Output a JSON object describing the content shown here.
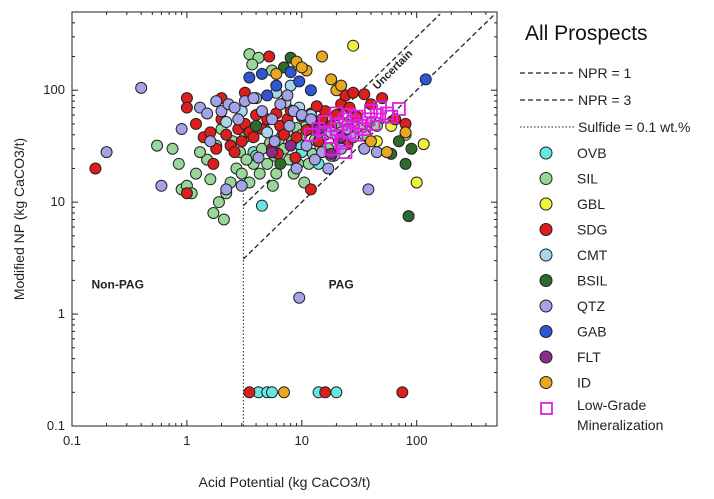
{
  "chart_data": {
    "type": "scatter",
    "title": "",
    "xlabel": "Acid Potential (kg CaCO3/t)",
    "ylabel": "Modified NP (kg CaCO3/t)",
    "xscale": "log",
    "yscale": "log",
    "xlim": [
      0.1,
      500
    ],
    "ylim": [
      0.1,
      500
    ],
    "x_ticks": [
      "0.1",
      "1",
      "10",
      "100"
    ],
    "y_ticks": [
      "0.1",
      "1",
      "10",
      "100"
    ],
    "legend_title": "All Prospects",
    "legend_position": "right",
    "grid": false,
    "regions": [
      {
        "name": "non-pag",
        "label": "Non-PAG",
        "x": 0.25,
        "y": 1.7
      },
      {
        "name": "pag",
        "label": "PAG",
        "x": 22,
        "y": 1.7
      },
      {
        "name": "uncertain",
        "label": "Uncertain",
        "x": 65,
        "y": 145
      }
    ],
    "lines": [
      {
        "name": "npr-1",
        "label": "NPR = 1",
        "style": "dashed",
        "points": [
          [
            3.1,
            9.3
          ],
          [
            160,
            480
          ]
        ]
      },
      {
        "name": "npr-3",
        "label": "NPR = 3",
        "style": "dashed",
        "points": [
          [
            3.1,
            3.1
          ],
          [
            480,
            480
          ]
        ]
      },
      {
        "name": "sulfide",
        "label": "Sulfide = 0.1 wt.%",
        "style": "dotted",
        "points": [
          [
            3.1,
            0.1
          ],
          [
            3.1,
            12
          ]
        ]
      }
    ],
    "series": [
      {
        "name": "OVB",
        "color": "#66E8E0",
        "marker": "circle",
        "points": [
          [
            4.5,
            9.3
          ],
          [
            4.2,
            0.2
          ],
          [
            5,
            0.2
          ],
          [
            5.5,
            0.2
          ],
          [
            14,
            0.2
          ],
          [
            20,
            0.2
          ],
          [
            3.8,
            28
          ],
          [
            5.2,
            32
          ],
          [
            6.8,
            40
          ],
          [
            10,
            28
          ],
          [
            9.5,
            33
          ],
          [
            14,
            22
          ]
        ]
      },
      {
        "name": "SIL",
        "color": "#98D69A",
        "marker": "circle",
        "points": [
          [
            3.5,
            210
          ],
          [
            4.2,
            195
          ],
          [
            3.7,
            170
          ],
          [
            5.5,
            150
          ],
          [
            0.55,
            32
          ],
          [
            0.75,
            30
          ],
          [
            0.85,
            22
          ],
          [
            0.9,
            13
          ],
          [
            1.0,
            14
          ],
          [
            1.1,
            12
          ],
          [
            1.2,
            18
          ],
          [
            1.5,
            24
          ],
          [
            1.6,
            16
          ],
          [
            1.7,
            8
          ],
          [
            1.9,
            10
          ],
          [
            2.1,
            7
          ],
          [
            2.2,
            12
          ],
          [
            2.4,
            15
          ],
          [
            2.7,
            20
          ],
          [
            3.0,
            18
          ],
          [
            3.5,
            15
          ],
          [
            3.8,
            22
          ],
          [
            4.0,
            26
          ],
          [
            4.5,
            30
          ],
          [
            5.0,
            22
          ],
          [
            5.3,
            34
          ],
          [
            5.8,
            26
          ],
          [
            6.3,
            36
          ],
          [
            7.0,
            30
          ],
          [
            7.5,
            42
          ],
          [
            8.2,
            35
          ],
          [
            9.0,
            46
          ],
          [
            10,
            40
          ],
          [
            11,
            50
          ],
          [
            12,
            45
          ],
          [
            13,
            36
          ],
          [
            15,
            52
          ],
          [
            16,
            40
          ],
          [
            18,
            55
          ],
          [
            20,
            48
          ],
          [
            22,
            42
          ],
          [
            25,
            50
          ],
          [
            28,
            58
          ],
          [
            32,
            45
          ],
          [
            35,
            40
          ],
          [
            40,
            52
          ],
          [
            45,
            48
          ],
          [
            8.5,
            18
          ],
          [
            10.5,
            15
          ],
          [
            12.5,
            27
          ],
          [
            2.0,
            45
          ],
          [
            2.5,
            35
          ],
          [
            3.2,
            38
          ],
          [
            4.8,
            44
          ],
          [
            6.5,
            48
          ],
          [
            1.3,
            28
          ],
          [
            1.8,
            32
          ],
          [
            2.9,
            28
          ],
          [
            6.0,
            18
          ],
          [
            7.8,
            24
          ],
          [
            9.3,
            22
          ],
          [
            17,
            30
          ],
          [
            19,
            26
          ],
          [
            27,
            38
          ],
          [
            11.5,
            22
          ],
          [
            14.5,
            31
          ],
          [
            5.6,
            14
          ],
          [
            4.3,
            18
          ],
          [
            3.3,
            24
          ],
          [
            13.5,
            46
          ],
          [
            21,
            36
          ]
        ]
      },
      {
        "name": "GBL",
        "color": "#F0F23C",
        "marker": "circle",
        "points": [
          [
            28,
            250
          ],
          [
            100,
            15
          ],
          [
            115,
            33
          ],
          [
            80,
            40
          ],
          [
            60,
            48
          ],
          [
            45,
            35
          ]
        ]
      },
      {
        "name": "SDG",
        "color": "#DE1E1E",
        "marker": "circle",
        "points": [
          [
            0.16,
            20
          ],
          [
            1.0,
            85
          ],
          [
            1.0,
            70
          ],
          [
            1.0,
            12
          ],
          [
            1.2,
            50
          ],
          [
            1.4,
            38
          ],
          [
            1.6,
            42
          ],
          [
            1.8,
            30
          ],
          [
            2.0,
            55
          ],
          [
            2.2,
            40
          ],
          [
            2.4,
            32
          ],
          [
            2.6,
            28
          ],
          [
            2.8,
            45
          ],
          [
            3.0,
            35
          ],
          [
            3.2,
            50
          ],
          [
            3.5,
            42
          ],
          [
            3.8,
            38
          ],
          [
            4.0,
            60
          ],
          [
            4.5,
            45
          ],
          [
            5.0,
            55
          ],
          [
            5.5,
            30
          ],
          [
            6.0,
            62
          ],
          [
            6.5,
            48
          ],
          [
            7.0,
            40
          ],
          [
            7.5,
            55
          ],
          [
            8.0,
            66
          ],
          [
            9.0,
            38
          ],
          [
            10,
            58
          ],
          [
            11,
            44
          ],
          [
            12,
            62
          ],
          [
            13,
            50
          ],
          [
            14,
            35
          ],
          [
            15,
            55
          ],
          [
            16,
            65
          ],
          [
            18,
            48
          ],
          [
            20,
            60
          ],
          [
            22,
            75
          ],
          [
            24,
            90
          ],
          [
            26,
            70
          ],
          [
            28,
            95
          ],
          [
            30,
            58
          ],
          [
            35,
            92
          ],
          [
            40,
            75
          ],
          [
            50,
            85
          ],
          [
            65,
            55
          ],
          [
            80,
            50
          ],
          [
            5.2,
            200
          ],
          [
            3.2,
            95
          ],
          [
            3.5,
            0.2
          ],
          [
            16,
            0.2
          ],
          [
            75,
            0.2
          ],
          [
            12,
            13
          ],
          [
            2.0,
            85.0
          ],
          [
            1.7,
            22
          ],
          [
            6.2,
            27
          ],
          [
            25,
            33
          ],
          [
            13.5,
            72
          ],
          [
            8.8,
            25
          ]
        ]
      },
      {
        "name": "CMT",
        "color": "#A8D4EE",
        "marker": "circle",
        "points": [
          [
            2.2,
            52
          ],
          [
            3.0,
            65
          ],
          [
            4.0,
            85
          ],
          [
            6.0,
            95
          ],
          [
            8.0,
            110
          ],
          [
            9.5,
            70
          ],
          [
            12,
            60
          ],
          [
            5.0,
            42
          ],
          [
            7.2,
            78
          ],
          [
            18,
            42
          ]
        ]
      },
      {
        "name": "BSIL",
        "color": "#2D6B2D",
        "marker": "circle",
        "points": [
          [
            85,
            7.5
          ],
          [
            70,
            35
          ],
          [
            60,
            27
          ],
          [
            80,
            22
          ],
          [
            90,
            30
          ],
          [
            8.0,
            195
          ],
          [
            7.0,
            160
          ],
          [
            4.0,
            48
          ],
          [
            6.5,
            22
          ]
        ]
      },
      {
        "name": "QTZ",
        "color": "#A5A3E8",
        "marker": "circle",
        "points": [
          [
            0.2,
            28
          ],
          [
            0.4,
            105
          ],
          [
            0.6,
            14
          ],
          [
            0.9,
            45
          ],
          [
            1.3,
            70
          ],
          [
            1.5,
            62
          ],
          [
            1.8,
            80
          ],
          [
            2.0,
            65
          ],
          [
            2.3,
            75
          ],
          [
            2.6,
            70
          ],
          [
            3.2,
            80
          ],
          [
            3.8,
            85
          ],
          [
            4.5,
            65
          ],
          [
            5.5,
            55
          ],
          [
            6.5,
            75
          ],
          [
            7.5,
            90
          ],
          [
            8.5,
            65
          ],
          [
            9.5,
            1.4
          ],
          [
            10,
            60
          ],
          [
            12,
            55
          ],
          [
            14,
            42
          ],
          [
            15,
            28
          ],
          [
            18,
            26
          ],
          [
            20,
            40
          ],
          [
            22,
            30
          ],
          [
            25,
            45
          ],
          [
            28,
            38
          ],
          [
            35,
            30
          ],
          [
            38,
            13
          ],
          [
            45,
            28
          ],
          [
            3.0,
            14
          ],
          [
            2.2,
            13
          ],
          [
            4.2,
            25
          ],
          [
            5.8,
            35
          ],
          [
            7.8,
            48
          ],
          [
            11,
            32
          ],
          [
            13,
            24
          ],
          [
            17,
            20
          ],
          [
            1.6,
            35
          ],
          [
            2.8,
            55
          ],
          [
            9.0,
            20
          ]
        ]
      },
      {
        "name": "GAB",
        "color": "#2E56D6",
        "marker": "circle",
        "points": [
          [
            3.5,
            130
          ],
          [
            4.5,
            140
          ],
          [
            6.0,
            110
          ],
          [
            8.0,
            145
          ],
          [
            9.5,
            120
          ],
          [
            12,
            100
          ],
          [
            120,
            125
          ],
          [
            5.0,
            90
          ]
        ]
      },
      {
        "name": "FLT",
        "color": "#8E2A8E",
        "marker": "circle",
        "points": [
          [
            5.5,
            28
          ],
          [
            8.0,
            32
          ],
          [
            18,
            27
          ],
          [
            22,
            38
          ],
          [
            14,
            45
          ]
        ]
      },
      {
        "name": "ID",
        "color": "#E8A820",
        "marker": "circle",
        "points": [
          [
            7.0,
            0.2
          ],
          [
            9.0,
            180
          ],
          [
            11,
            150
          ],
          [
            15,
            200
          ],
          [
            18,
            125
          ],
          [
            20,
            100
          ],
          [
            22,
            110
          ],
          [
            40,
            35
          ],
          [
            55,
            28
          ],
          [
            80,
            42
          ],
          [
            6.0,
            140
          ],
          [
            10,
            160
          ]
        ]
      },
      {
        "name": "Low-Grade Mineralization",
        "color": "#E020E0",
        "marker": "square",
        "points": [
          [
            12,
            40
          ],
          [
            14,
            45
          ],
          [
            16,
            42
          ],
          [
            18,
            38
          ],
          [
            20,
            45
          ],
          [
            22,
            50
          ],
          [
            24,
            55
          ],
          [
            26,
            60
          ],
          [
            28,
            52
          ],
          [
            30,
            40
          ],
          [
            32,
            48
          ],
          [
            35,
            45
          ],
          [
            38,
            55
          ],
          [
            40,
            65
          ],
          [
            45,
            60
          ],
          [
            48,
            70
          ],
          [
            55,
            62
          ],
          [
            60,
            58
          ],
          [
            70,
            68
          ],
          [
            18,
            30
          ],
          [
            22,
            34
          ],
          [
            24,
            28
          ],
          [
            16,
            52
          ],
          [
            30,
            58
          ],
          [
            26,
            42
          ],
          [
            42,
            50
          ],
          [
            20,
            62
          ]
        ]
      }
    ]
  }
}
